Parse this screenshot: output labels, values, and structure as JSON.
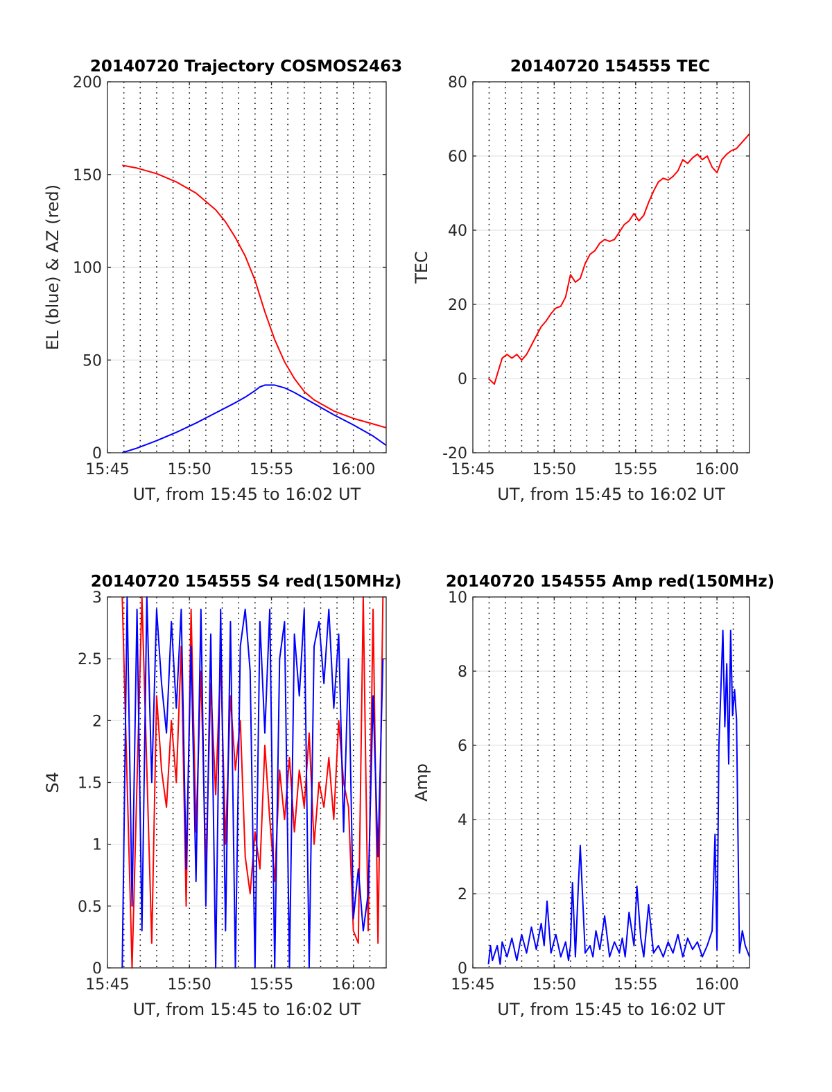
{
  "figure": {
    "panels": [
      {
        "title": "20140720 Trajectory COSMOS2463"
      },
      {
        "title": "20140720 154555 TEC"
      },
      {
        "title": "20140720 154555 S4 red(150MHz)"
      },
      {
        "title": "20140720 154555 Amp red(150MHz)"
      }
    ]
  },
  "chart_data": [
    {
      "type": "line",
      "title": "20140720 Trajectory COSMOS2463",
      "xlabel": "UT, from 15:45 to 16:02 UT",
      "ylabel": "EL (blue) & AZ (red)",
      "xlim": [
        15.75,
        16.0333
      ],
      "ylim": [
        0,
        200
      ],
      "xticks": [
        15.75,
        15.8333,
        15.9167,
        16.0
      ],
      "xtick_labels": [
        "15:45",
        "15:50",
        "15:55",
        "16:00"
      ],
      "yticks": [
        0,
        50,
        100,
        150,
        200
      ],
      "ytick_labels": [
        "0",
        "50",
        "100",
        "150",
        "200"
      ],
      "grid": true,
      "series": [
        {
          "color": "#0000ff",
          "x": [
            15.765,
            15.78,
            15.8,
            15.82,
            15.84,
            15.86,
            15.88,
            15.89,
            15.9,
            15.905,
            15.91,
            15.92,
            15.93,
            15.94,
            15.96,
            15.98,
            16.0,
            16.02,
            16.0333
          ],
          "y": [
            0,
            2.5,
            6.5,
            11,
            16,
            21.5,
            27,
            30,
            33.5,
            35.5,
            36.5,
            36.5,
            35,
            32.5,
            26.5,
            20.5,
            15,
            9,
            4
          ]
        },
        {
          "color": "#ff0000",
          "x": [
            15.765,
            15.78,
            15.8,
            15.82,
            15.84,
            15.86,
            15.87,
            15.88,
            15.89,
            15.9,
            15.91,
            15.92,
            15.93,
            15.94,
            15.95,
            15.96,
            15.98,
            16.0,
            16.02,
            16.0333
          ],
          "y": [
            155,
            153.5,
            150.5,
            146,
            140,
            131,
            124.5,
            116,
            106,
            93,
            76,
            61,
            49,
            40,
            33,
            28.5,
            22.5,
            18.5,
            15.5,
            13.5
          ]
        }
      ]
    },
    {
      "type": "line",
      "title": "20140720 154555 TEC",
      "xlabel": "UT, from 15:45 to 16:02 UT",
      "ylabel": "TEC",
      "xlim": [
        15.75,
        16.0333
      ],
      "ylim": [
        -20,
        80
      ],
      "xticks": [
        15.75,
        15.8333,
        15.9167,
        16.0
      ],
      "xtick_labels": [
        "15:45",
        "15:50",
        "15:55",
        "16:00"
      ],
      "yticks": [
        -20,
        0,
        20,
        40,
        60,
        80
      ],
      "ytick_labels": [
        "-20",
        "0",
        "20",
        "40",
        "60",
        "80"
      ],
      "grid": true,
      "series": [
        {
          "color": "#ff0000",
          "x": [
            15.766,
            15.772,
            15.776,
            15.78,
            15.785,
            15.79,
            15.795,
            15.8,
            15.805,
            15.81,
            15.815,
            15.82,
            15.825,
            15.83,
            15.835,
            15.84,
            15.845,
            15.85,
            15.855,
            15.86,
            15.865,
            15.87,
            15.875,
            15.88,
            15.885,
            15.89,
            15.895,
            15.9,
            15.905,
            15.91,
            15.915,
            15.92,
            15.925,
            15.93,
            15.935,
            15.94,
            15.945,
            15.95,
            15.955,
            15.96,
            15.965,
            15.97,
            15.975,
            15.98,
            15.985,
            15.99,
            15.995,
            16.0,
            16.005,
            16.01,
            16.015,
            16.02,
            16.025,
            16.03,
            16.0333
          ],
          "y": [
            0,
            -1.5,
            2,
            5.5,
            6.5,
            5.5,
            6.5,
            5,
            6.5,
            9,
            11.5,
            14,
            15.5,
            17.5,
            19,
            19.5,
            22,
            28,
            26,
            27,
            31,
            33.5,
            34.5,
            36.5,
            37.5,
            37,
            37.5,
            39.5,
            41.5,
            42.5,
            44.5,
            42.5,
            44,
            47.5,
            50.5,
            53,
            54,
            53.5,
            54.5,
            56,
            59,
            58,
            59.5,
            60.5,
            59,
            60,
            57,
            55.5,
            59,
            60.5,
            61.5,
            62,
            63.5,
            65,
            66
          ]
        }
      ]
    },
    {
      "type": "line",
      "title": "20140720 154555 S4 red(150MHz)",
      "xlabel": "UT, from 15:45 to 16:02 UT",
      "ylabel": "S4",
      "xlim": [
        15.75,
        16.0333
      ],
      "ylim": [
        0,
        3
      ],
      "xticks": [
        15.75,
        15.8333,
        15.9167,
        16.0
      ],
      "xtick_labels": [
        "15:45",
        "15:50",
        "15:55",
        "16:00"
      ],
      "yticks": [
        0,
        0.5,
        1,
        1.5,
        2,
        2.5,
        3
      ],
      "ytick_labels": [
        "0",
        "0.5",
        "1",
        "1.5",
        "2",
        "2.5",
        "3"
      ],
      "grid": true,
      "series": [
        {
          "color": "#ff0000",
          "x": [
            15.765,
            15.775,
            15.785,
            15.795,
            15.8,
            15.805,
            15.81,
            15.815,
            15.82,
            15.825,
            15.83,
            15.835,
            15.84,
            15.845,
            15.85,
            15.855,
            15.86,
            15.865,
            15.87,
            15.875,
            15.88,
            15.885,
            15.89,
            15.895,
            15.9,
            15.905,
            15.91,
            15.915,
            15.92,
            15.925,
            15.93,
            15.935,
            15.94,
            15.945,
            15.95,
            15.955,
            15.96,
            15.965,
            15.97,
            15.975,
            15.98,
            15.985,
            15.99,
            15.995,
            16.0,
            16.005,
            16.01,
            16.015,
            16.02,
            16.025,
            16.03
          ],
          "y": [
            3,
            0,
            3,
            0.2,
            2.2,
            1.6,
            1.3,
            2.0,
            1.5,
            2.6,
            0.5,
            2.9,
            1.1,
            2.4,
            0.8,
            2.3,
            1.4,
            2.5,
            1.0,
            2.2,
            1.6,
            2.0,
            0.9,
            0.6,
            1.1,
            0.8,
            1.8,
            1.2,
            0.7,
            1.6,
            1.2,
            1.7,
            1.1,
            1.6,
            1.3,
            1.9,
            1.0,
            1.5,
            1.3,
            1.7,
            1.2,
            2.0,
            1.5,
            1.3,
            0.3,
            0.2,
            3,
            0.3,
            2.9,
            0.2,
            3
          ]
        },
        {
          "color": "#0000ff",
          "x": [
            15.765,
            15.77,
            15.775,
            15.78,
            15.785,
            15.79,
            15.795,
            15.8,
            15.805,
            15.81,
            15.815,
            15.82,
            15.825,
            15.83,
            15.835,
            15.84,
            15.845,
            15.85,
            15.855,
            15.86,
            15.865,
            15.87,
            15.875,
            15.88,
            15.885,
            15.89,
            15.895,
            15.9,
            15.905,
            15.91,
            15.915,
            15.92,
            15.925,
            15.93,
            15.935,
            15.94,
            15.945,
            15.95,
            15.955,
            15.96,
            15.965,
            15.97,
            15.975,
            15.98,
            15.985,
            15.99,
            15.995,
            16.0,
            16.005,
            16.01,
            16.015,
            16.02,
            16.025,
            16.03
          ],
          "y": [
            0,
            3,
            0.5,
            2.9,
            0.3,
            3,
            1.5,
            2.9,
            2.3,
            1.9,
            2.8,
            2.1,
            2.9,
            0.8,
            2.6,
            0.7,
            2.9,
            0.5,
            2.7,
            0,
            2.9,
            0.3,
            2.8,
            0,
            2.6,
            2.9,
            2.4,
            0,
            2.8,
            1.9,
            2.9,
            0,
            2.5,
            2.8,
            0,
            2.7,
            2.2,
            2.9,
            0,
            2.6,
            2.8,
            2.3,
            2.9,
            2.1,
            2.7,
            1.1,
            2.5,
            0.4,
            0.8,
            0.3,
            0.6,
            2.2,
            0.9,
            2.5
          ]
        }
      ]
    },
    {
      "type": "line",
      "title": "20140720 154555 Amp red(150MHz)",
      "xlabel": "UT, from 15:45 to 16:02 UT",
      "ylabel": "Amp",
      "xlim": [
        15.75,
        16.0333
      ],
      "ylim": [
        0,
        10
      ],
      "xticks": [
        15.75,
        15.8333,
        15.9167,
        16.0
      ],
      "xtick_labels": [
        "15:45",
        "15:50",
        "15:55",
        "16:00"
      ],
      "yticks": [
        0,
        2,
        4,
        6,
        8,
        10
      ],
      "ytick_labels": [
        "0",
        "2",
        "4",
        "6",
        "8",
        "10"
      ],
      "grid": true,
      "series": [
        {
          "color": "#0000ff",
          "x": [
            15.766,
            15.768,
            15.77,
            15.775,
            15.778,
            15.78,
            15.785,
            15.79,
            15.795,
            15.8,
            15.805,
            15.81,
            15.815,
            15.82,
            15.823,
            15.826,
            15.83,
            15.835,
            15.84,
            15.845,
            15.848,
            15.85,
            15.852,
            15.855,
            15.858,
            15.86,
            15.865,
            15.87,
            15.873,
            15.876,
            15.88,
            15.885,
            15.89,
            15.895,
            15.9,
            15.903,
            15.906,
            15.91,
            15.915,
            15.918,
            15.922,
            15.925,
            15.93,
            15.935,
            15.94,
            15.945,
            15.95,
            15.955,
            15.96,
            15.965,
            15.97,
            15.975,
            15.98,
            15.985,
            15.99,
            15.995,
            15.998,
            16.0,
            16.002,
            16.004,
            16.006,
            16.008,
            16.01,
            16.012,
            16.014,
            16.016,
            16.018,
            16.02,
            16.023,
            16.026,
            16.029,
            16.0333
          ],
          "y": [
            0.1,
            0.6,
            0.2,
            0.6,
            0.1,
            0.7,
            0.3,
            0.8,
            0.2,
            0.9,
            0.4,
            1.1,
            0.5,
            1.2,
            0.6,
            1.8,
            0.4,
            0.9,
            0.3,
            0.7,
            0.2,
            0.6,
            2.3,
            0.3,
            2.2,
            3.3,
            0.4,
            0.6,
            0.3,
            1.0,
            0.5,
            1.4,
            0.3,
            0.7,
            0.4,
            0.8,
            0.3,
            1.5,
            0.6,
            2.2,
            0.8,
            0.3,
            1.7,
            0.4,
            0.6,
            0.3,
            0.7,
            0.4,
            0.9,
            0.3,
            0.8,
            0.5,
            0.7,
            0.3,
            0.6,
            1.0,
            3.6,
            0.5,
            6.0,
            7.5,
            9.1,
            6.5,
            8.2,
            5.5,
            9.1,
            6.8,
            7.5,
            6.7,
            0.4,
            1.0,
            0.6,
            0.3
          ]
        }
      ]
    }
  ]
}
